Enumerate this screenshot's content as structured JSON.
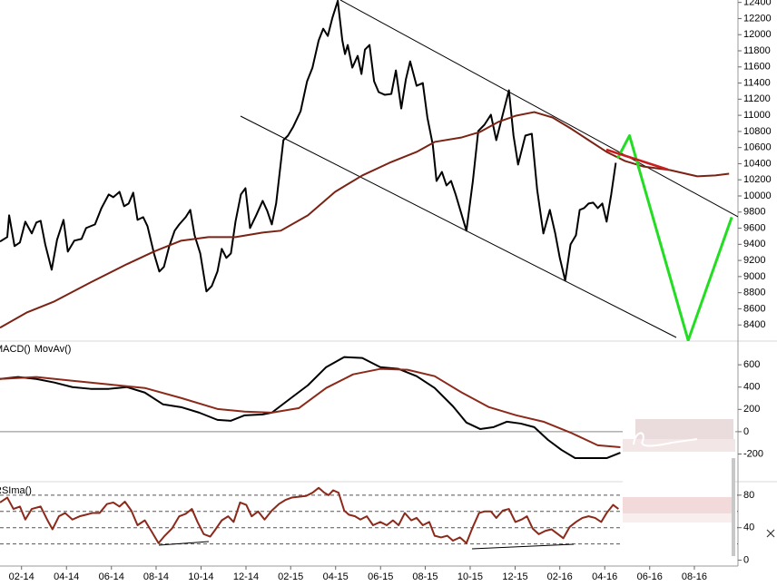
{
  "chart_data": [
    {
      "type": "line",
      "xlim": [
        2014.003,
        2016.745
      ],
      "ylim": [
        8200,
        12430
      ],
      "yticks": [
        8400,
        8600,
        8800,
        9000,
        9200,
        9400,
        9600,
        9800,
        10000,
        10200,
        10400,
        10600,
        10800,
        11000,
        11200,
        11400,
        11600,
        11800,
        12000,
        12200,
        12400
      ],
      "series": [
        {
          "color": "#000000",
          "width": 2,
          "x": [
            2014.003,
            2014.03,
            2014.037,
            2014.057,
            2014.077,
            2014.097,
            2014.121,
            2014.138,
            2014.154,
            2014.171,
            2014.195,
            2014.215,
            2014.239,
            2014.255,
            2014.279,
            2014.306,
            2014.323,
            2014.356,
            2014.38,
            2014.407,
            2014.424,
            2014.447,
            2014.464,
            2014.481,
            2014.498,
            2014.514,
            2014.535,
            2014.551,
            2014.575,
            2014.595,
            2014.612,
            2014.632,
            2014.652,
            2014.669,
            2014.693,
            2014.71,
            2014.726,
            2014.747,
            2014.77,
            2014.79,
            2014.811,
            2014.827,
            2014.844,
            2014.861,
            2014.878,
            2014.898,
            2014.915,
            2014.932,
            2014.955,
            2014.979,
            2014.996,
            2015.013,
            2015.029,
            2015.056,
            2015.073,
            2015.093,
            2015.12,
            2015.144,
            2015.164,
            2015.187,
            2015.204,
            2015.221,
            2015.238,
            2015.258,
            2015.275,
            2015.285,
            2015.295,
            2015.312,
            2015.332,
            2015.346,
            2015.359,
            2015.376,
            2015.393,
            2015.41,
            2015.433,
            2015.457,
            2015.474,
            2015.494,
            2015.511,
            2015.527,
            2015.551,
            2015.574,
            2015.591,
            2015.611,
            2015.625,
            2015.645,
            2015.662,
            2015.679,
            2015.696,
            2015.736,
            2015.76,
            2015.78,
            2015.803,
            2015.827,
            2015.847,
            2015.864,
            2015.894,
            2015.911,
            2015.928,
            2015.955,
            2015.979,
            2015.999,
            2016.022,
            2016.046,
            2016.066,
            2016.083,
            2016.103,
            2016.123,
            2016.143,
            2016.157,
            2016.173,
            2016.19,
            2016.207,
            2016.224,
            2016.241,
            2016.257,
            2016.274,
            2016.291
          ],
          "values": [
            9434,
            9490,
            9760,
            9378,
            9423,
            9681,
            9535,
            9670,
            9692,
            9400,
            9085,
            9456,
            9703,
            9310,
            9445,
            9467,
            9602,
            9647,
            9849,
            10018,
            9984,
            10051,
            9872,
            9906,
            10040,
            9703,
            9737,
            9625,
            9288,
            9063,
            9120,
            9378,
            9569,
            9647,
            9737,
            9827,
            9512,
            9288,
            8816,
            8883,
            9063,
            9344,
            9232,
            9288,
            9681,
            10018,
            10096,
            9602,
            9760,
            9939,
            9815,
            9647,
            9906,
            10692,
            10748,
            10861,
            11052,
            11422,
            11591,
            11928,
            12074,
            11984,
            12209,
            12420,
            11928,
            11759,
            11872,
            11591,
            11737,
            11512,
            11815,
            11872,
            11422,
            11288,
            11254,
            11265,
            11557,
            11085,
            11445,
            11669,
            11366,
            11400,
            10973,
            10636,
            10186,
            10298,
            10130,
            10186,
            10018,
            9569,
            10186,
            10805,
            10883,
            11007,
            10692,
            10917,
            11310,
            10748,
            10389,
            10748,
            10771,
            10074,
            9535,
            9827,
            9535,
            9232,
            8951,
            9400,
            9512,
            9827,
            9849,
            9906,
            9917,
            9849,
            9906,
            9681,
            10018,
            10411
          ]
        },
        {
          "color": "#7a2314",
          "width": 2,
          "x": [
            2014.003,
            2014.104,
            2014.205,
            2014.34,
            2014.474,
            2014.575,
            2014.676,
            2014.777,
            2014.878,
            2014.979,
            2015.046,
            2015.147,
            2015.248,
            2015.349,
            2015.45,
            2015.551,
            2015.618,
            2015.719,
            2015.787,
            2015.854,
            2015.921,
            2015.988,
            2016.056,
            2016.123,
            2016.19,
            2016.257,
            2016.325,
            2016.392,
            2016.493,
            2016.594,
            2016.661,
            2016.712
          ],
          "values": [
            8366,
            8557,
            8692,
            8928,
            9153,
            9310,
            9445,
            9490,
            9490,
            9546,
            9569,
            9760,
            10051,
            10254,
            10411,
            10546,
            10670,
            10726,
            10794,
            10917,
            10996,
            11040,
            10973,
            10838,
            10692,
            10546,
            10434,
            10366,
            10321,
            10243,
            10254,
            10276
          ]
        },
        {
          "color": "#22dd22",
          "width": 3,
          "x": [
            2016.298,
            2016.342,
            2016.56,
            2016.722
          ],
          "values": [
            10467,
            10748,
            8209,
            9737
          ]
        }
      ]
    },
    {
      "type": "line",
      "xlim": [
        2014.003,
        2016.745
      ],
      "ylim": [
        -440,
        780
      ],
      "yticks": [
        -200,
        0,
        200,
        400,
        600
      ],
      "hlines": [
        0
      ],
      "hline_style": "solid",
      "series": [
        {
          "name": "MACD()",
          "color": "#000000",
          "width": 2,
          "x": [
            2014.003,
            2014.07,
            2014.138,
            2014.205,
            2014.272,
            2014.34,
            2014.407,
            2014.474,
            2014.541,
            2014.609,
            2014.676,
            2014.743,
            2014.811,
            2014.861,
            2014.912,
            2014.979,
            2015.013,
            2015.08,
            2015.147,
            2015.215,
            2015.282,
            2015.349,
            2015.416,
            2015.484,
            2015.551,
            2015.618,
            2015.686,
            2015.736,
            2015.787,
            2015.837,
            2015.887,
            2015.938,
            2015.988,
            2016.039,
            2016.089,
            2016.14,
            2016.19,
            2016.257,
            2016.308
          ],
          "values": [
            473,
            490,
            473,
            441,
            400,
            384,
            384,
            400,
            351,
            245,
            220,
            171,
            106,
            98,
            147,
            155,
            171,
            294,
            416,
            579,
            669,
            661,
            579,
            563,
            498,
            392,
            228,
            82,
            24,
            41,
            90,
            73,
            41,
            -73,
            -163,
            -237,
            -237,
            -237,
            -188
          ]
        },
        {
          "name": "MovAv()",
          "color": "#8b2a1a",
          "width": 2,
          "x": [
            2014.003,
            2014.138,
            2014.272,
            2014.407,
            2014.541,
            2014.676,
            2014.811,
            2014.912,
            2015.013,
            2015.114,
            2015.215,
            2015.315,
            2015.416,
            2015.517,
            2015.618,
            2015.719,
            2015.82,
            2015.921,
            2016.022,
            2016.123,
            2016.224,
            2016.308
          ],
          "values": [
            473,
            490,
            457,
            424,
            392,
            302,
            204,
            180,
            171,
            212,
            392,
            514,
            563,
            555,
            498,
            351,
            220,
            147,
            90,
            -8,
            -122,
            -139
          ]
        }
      ]
    },
    {
      "type": "line",
      "xlim": [
        2014.003,
        2016.745
      ],
      "ylim": [
        -5,
        91
      ],
      "yticks": [
        0,
        40,
        80
      ],
      "hlines": [
        20,
        40,
        60,
        80
      ],
      "hline_style": "dashed",
      "xticks": [
        {
          "value": 2014.083,
          "label": "02-14"
        },
        {
          "value": 2014.25,
          "label": "04-14"
        },
        {
          "value": 2014.417,
          "label": "06-14"
        },
        {
          "value": 2014.583,
          "label": "08-14"
        },
        {
          "value": 2014.75,
          "label": "10-14"
        },
        {
          "value": 2014.917,
          "label": "12-14"
        },
        {
          "value": 2015.083,
          "label": "02-15"
        },
        {
          "value": 2015.25,
          "label": "04-15"
        },
        {
          "value": 2015.417,
          "label": "06-15"
        },
        {
          "value": 2015.583,
          "label": "08-15"
        },
        {
          "value": 2015.75,
          "label": "10-15"
        },
        {
          "value": 2015.917,
          "label": "12-15"
        },
        {
          "value": 2016.083,
          "label": "02-16"
        },
        {
          "value": 2016.25,
          "label": "04-16"
        },
        {
          "value": 2016.417,
          "label": "06-16"
        },
        {
          "value": 2016.583,
          "label": "08-16"
        }
      ],
      "series": [
        {
          "name": "RSIma()",
          "color": "#8b2a1a",
          "width": 2,
          "x": [
            2014.003,
            2014.03,
            2014.053,
            2014.077,
            2014.097,
            2014.121,
            2014.154,
            2014.178,
            2014.198,
            2014.222,
            2014.245,
            2014.272,
            2014.299,
            2014.323,
            2014.346,
            2014.373,
            2014.4,
            2014.424,
            2014.447,
            2014.467,
            2014.491,
            2014.514,
            2014.541,
            2014.565,
            2014.592,
            2014.615,
            2014.642,
            2014.669,
            2014.693,
            2014.716,
            2014.737,
            2014.76,
            2014.784,
            2014.804,
            2014.827,
            2014.851,
            2014.871,
            2014.895,
            2014.918,
            2014.938,
            2014.962,
            2014.986,
            2015.013,
            2015.039,
            2015.063,
            2015.087,
            2015.113,
            2015.14,
            2015.164,
            2015.187,
            2015.208,
            2015.224,
            2015.241,
            2015.261,
            2015.282,
            2015.299,
            2015.322,
            2015.342,
            2015.366,
            2015.389,
            2015.416,
            2015.44,
            2015.463,
            2015.484,
            2015.507,
            2015.531,
            2015.551,
            2015.574,
            2015.598,
            2015.618,
            2015.642,
            2015.665,
            2015.686,
            2015.712,
            2015.736,
            2015.76,
            2015.783,
            2015.803,
            2015.827,
            2015.847,
            2015.871,
            2015.894,
            2015.918,
            2015.941,
            2015.961,
            2015.982,
            2016.005,
            2016.029,
            2016.052,
            2016.076,
            2016.096,
            2016.12,
            2016.143,
            2016.167,
            2016.19,
            2016.214,
            2016.237,
            2016.257,
            2016.281,
            2016.301
          ],
          "values": [
            71,
            77,
            63,
            66,
            50,
            63,
            66,
            50,
            38,
            54,
            58,
            50,
            54,
            56,
            58,
            58,
            69,
            71,
            66,
            72,
            61,
            43,
            49,
            36,
            21,
            30,
            39,
            54,
            57,
            63,
            47,
            32,
            29,
            38,
            49,
            54,
            47,
            71,
            68,
            54,
            60,
            50,
            61,
            69,
            74,
            77,
            78,
            79,
            83,
            89,
            83,
            80,
            86,
            83,
            61,
            56,
            54,
            50,
            54,
            43,
            47,
            43,
            49,
            43,
            58,
            49,
            52,
            43,
            47,
            30,
            28,
            30,
            24,
            28,
            21,
            41,
            58,
            60,
            60,
            52,
            61,
            63,
            47,
            50,
            54,
            39,
            32,
            36,
            38,
            32,
            27,
            41,
            47,
            52,
            54,
            52,
            47,
            58,
            68,
            63
          ]
        }
      ]
    }
  ]
}
